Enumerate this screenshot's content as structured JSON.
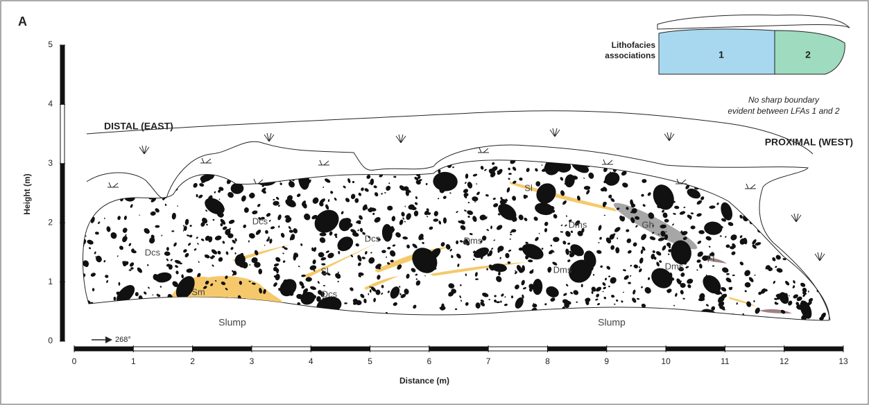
{
  "panel_label": "A",
  "legend": {
    "title": [
      "Lithofacies",
      "associations"
    ],
    "zones": [
      "1",
      "2"
    ],
    "note": [
      "No sharp boundary",
      "evident between LFAs 1 and 2"
    ]
  },
  "orientation": {
    "distal": "DISTAL (EAST)",
    "proximal": "PROXIMAL (WEST)",
    "bearing": "268°"
  },
  "facies_labels": [
    "Dcs",
    "Dcs",
    "Dcs",
    "Dcs",
    "Sm",
    "Sl",
    "Sl",
    "Dms",
    "Dms",
    "Dms",
    "Dms",
    "Gh",
    "Fl"
  ],
  "units": [
    "Slump",
    "Slump"
  ],
  "axes": {
    "y_label": "Height (m)",
    "x_label": "Distance (m)",
    "yticks": [
      0,
      1,
      2,
      3,
      4,
      5
    ],
    "xticks": [
      0,
      1,
      2,
      3,
      4,
      5,
      6,
      7,
      8,
      9,
      10,
      11,
      12,
      13
    ]
  }
}
